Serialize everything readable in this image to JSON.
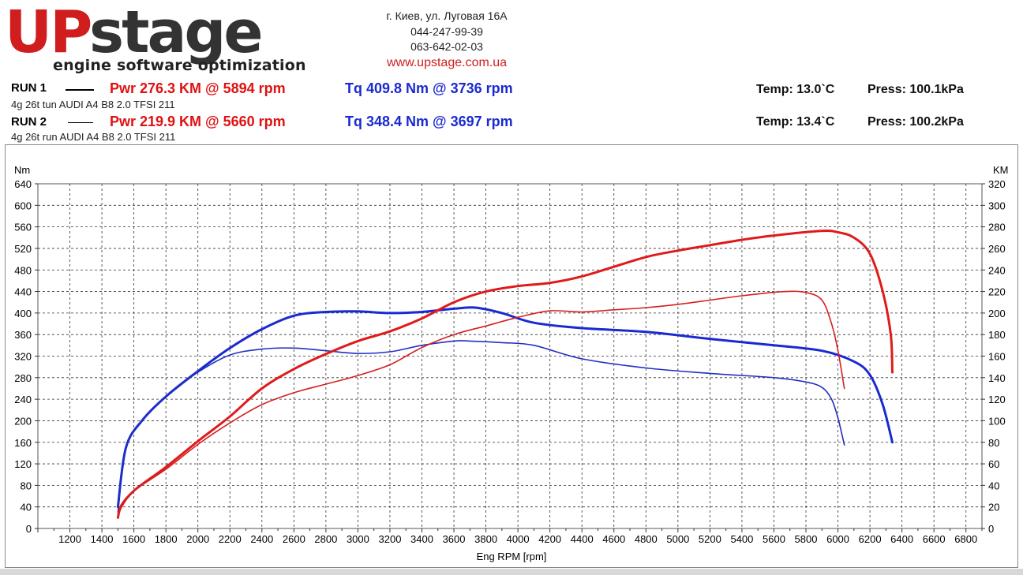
{
  "header": {
    "logo_up": "UP",
    "logo_stage": "stage",
    "tagline": "engine software optimization",
    "address": "г. Киев, ул. Луговая 16А",
    "phone1": "044-247-99-39",
    "phone2": "063-642-02-03",
    "website": "www.upstage.com.ua"
  },
  "runs": [
    {
      "label": "RUN 1",
      "power": "Pwr  276.3 KM @ 5894 rpm",
      "torque": "Tq 409.8 Nm @ 3736 rpm",
      "car": "4g 26t tun AUDI A4 B8 2.0 TFSI 211",
      "temp": "Temp: 13.0`C",
      "press": "Press: 100.1kPa"
    },
    {
      "label": "RUN 2",
      "power": "Pwr  219.9 KM @ 5660 rpm",
      "torque": "Tq 348.4 Nm @ 3697 rpm",
      "car": "4g 26t run AUDI A4 B8 2.0 TFSI 211",
      "temp": "Temp: 13.4`C",
      "press": "Press: 100.2kPa"
    }
  ],
  "colors": {
    "power": "#e01a1a",
    "torque": "#1a2ad0",
    "power_run2": "#d42020",
    "torque_run2": "#2030c0"
  },
  "chart_data": {
    "type": "line",
    "xlabel": "Eng RPM [rpm]",
    "ylabel_left": "Nm",
    "ylabel_right": "KM",
    "xlim": [
      1000,
      6900
    ],
    "ylim_left": [
      0,
      640
    ],
    "ylim_right": [
      0,
      320
    ],
    "x_ticks": [
      1200,
      1400,
      1600,
      1800,
      2000,
      2200,
      2400,
      2600,
      2800,
      3000,
      3200,
      3400,
      3600,
      3800,
      4000,
      4200,
      4400,
      4600,
      4800,
      5000,
      5200,
      5400,
      5600,
      5800,
      6000,
      6200,
      6400,
      6600,
      6800
    ],
    "y_ticks_left": [
      0,
      40,
      80,
      120,
      160,
      200,
      240,
      280,
      320,
      360,
      400,
      440,
      480,
      520,
      560,
      600,
      640
    ],
    "y_ticks_right": [
      0,
      20,
      40,
      60,
      80,
      100,
      120,
      140,
      160,
      180,
      200,
      220,
      240,
      260,
      280,
      300,
      320
    ],
    "grid": true,
    "series": [
      {
        "name": "RUN 1",
        "quantity": "torque",
        "axis": "left",
        "x": [
          1500,
          1550,
          1650,
          1800,
          2000,
          2200,
          2400,
          2600,
          2800,
          3000,
          3200,
          3400,
          3600,
          3736,
          3900,
          4100,
          4400,
          4800,
          5200,
          5600,
          5900,
          6100,
          6200,
          6280,
          6340
        ],
        "y": [
          40,
          150,
          200,
          245,
          292,
          335,
          370,
          395,
          402,
          403,
          400,
          402,
          408,
          410,
          400,
          382,
          372,
          365,
          352,
          340,
          330,
          310,
          285,
          230,
          160
        ]
      },
      {
        "name": "RUN 2",
        "quantity": "torque",
        "axis": "left",
        "x": [
          1500,
          1550,
          1650,
          1800,
          2000,
          2200,
          2400,
          2600,
          2800,
          3000,
          3200,
          3400,
          3600,
          3697,
          3900,
          4100,
          4400,
          4800,
          5200,
          5600,
          5800,
          5900,
          5960,
          6000,
          6040
        ],
        "y": [
          30,
          150,
          200,
          245,
          290,
          322,
          333,
          335,
          330,
          325,
          328,
          340,
          348,
          348,
          345,
          340,
          315,
          298,
          288,
          280,
          272,
          262,
          240,
          205,
          155
        ]
      },
      {
        "name": "RUN 1",
        "quantity": "power",
        "axis": "right",
        "x": [
          1500,
          1520,
          1600,
          1800,
          2000,
          2200,
          2400,
          2600,
          2800,
          3000,
          3200,
          3400,
          3600,
          3800,
          4000,
          4200,
          4400,
          4600,
          4800,
          5000,
          5200,
          5400,
          5600,
          5894,
          6000,
          6100,
          6200,
          6280,
          6330,
          6340
        ],
        "y": [
          10,
          20,
          35,
          57,
          81,
          104,
          130,
          148,
          162,
          174,
          183,
          195,
          210,
          220,
          225,
          228,
          234,
          243,
          252,
          258,
          263,
          268,
          272,
          276.3,
          275,
          270,
          255,
          220,
          180,
          145
        ]
      },
      {
        "name": "RUN 2",
        "quantity": "power",
        "axis": "right",
        "x": [
          1500,
          1520,
          1600,
          1800,
          2000,
          2200,
          2400,
          2600,
          2800,
          3000,
          3200,
          3400,
          3600,
          3800,
          4000,
          4200,
          4400,
          4600,
          4800,
          5000,
          5200,
          5400,
          5660,
          5800,
          5900,
          5960,
          6000,
          6040
        ],
        "y": [
          12,
          22,
          35,
          55,
          78,
          98,
          115,
          126,
          134,
          142,
          152,
          168,
          180,
          188,
          196,
          202,
          201,
          203,
          205,
          208,
          212,
          216,
          219.9,
          219,
          212,
          190,
          165,
          130
        ]
      }
    ]
  }
}
